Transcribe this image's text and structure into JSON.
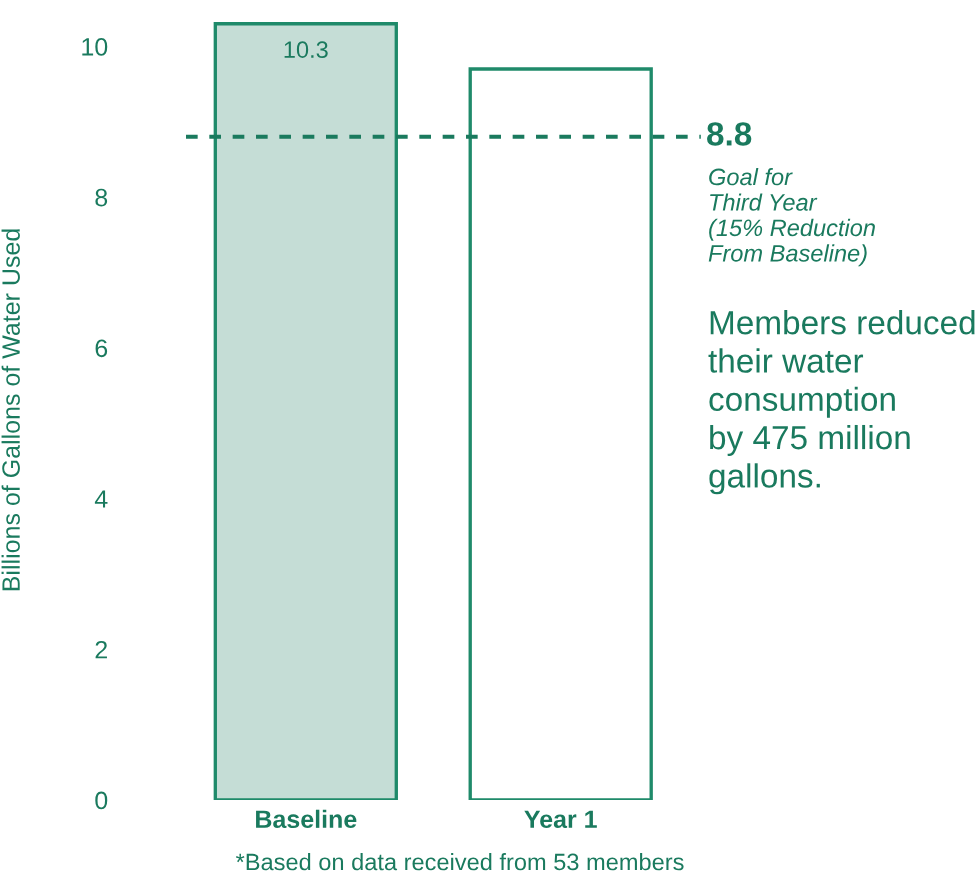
{
  "chart_data": {
    "type": "bar",
    "ylabel": "Billions of Gallons of Water Used",
    "categories": [
      "Baseline",
      "Year 1"
    ],
    "values": [
      10.3,
      9.7
    ],
    "value_labels": [
      "10.3",
      null
    ],
    "colors": [
      "#c5ddd6",
      "#ffffff"
    ],
    "ylim": [
      0,
      10.35
    ],
    "yticks": [
      0,
      2,
      4,
      6,
      8,
      10
    ],
    "grid": false,
    "ref_lines": [
      {
        "axis": "y",
        "value": 8.8,
        "label": "8.8",
        "color": "#1a7a5e",
        "line_style": "dashed"
      }
    ],
    "annotations": [
      "Goal for\nThird Year\n(15% Reduction\nFrom Baseline)",
      "Members reduced\ntheir water\nconsumption\nby 475 million\ngallons.",
      "*Based on data received from 53 members"
    ]
  }
}
